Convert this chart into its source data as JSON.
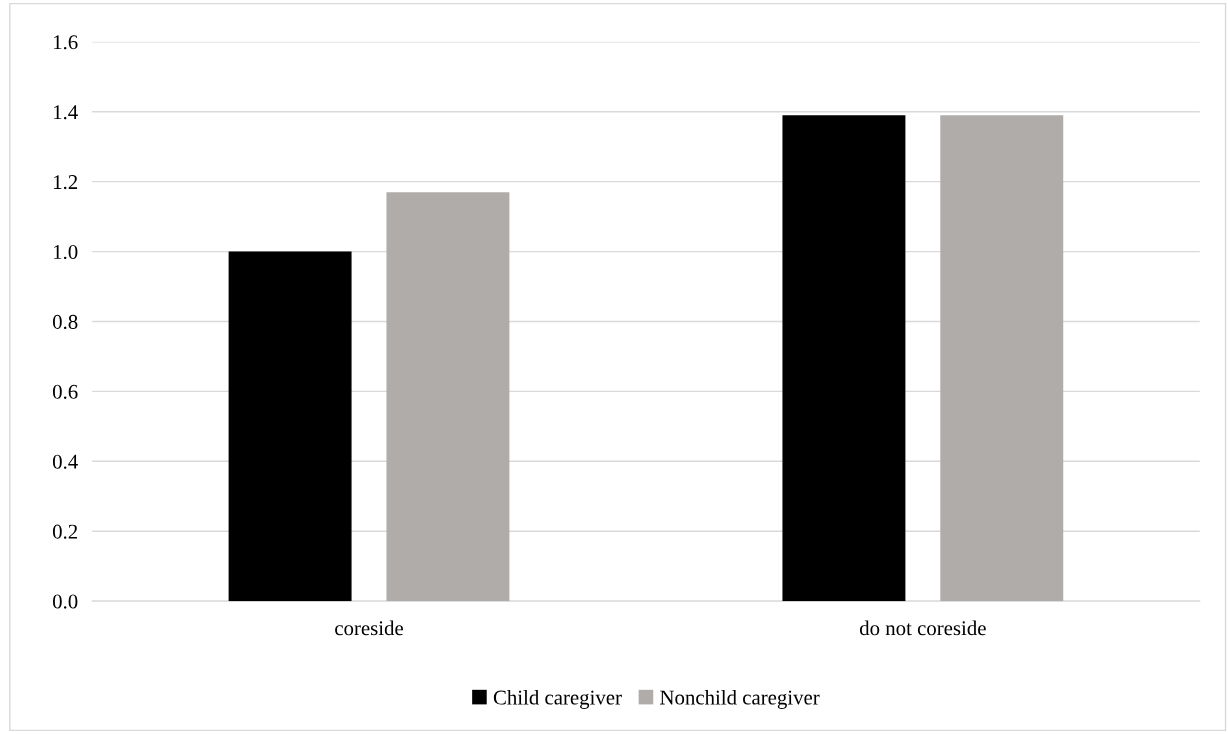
{
  "chart_data": {
    "type": "bar",
    "categories": [
      "coreside",
      "do not coreside"
    ],
    "series": [
      {
        "name": "Child caregiver",
        "color": "#000000",
        "values": [
          1.0,
          1.39
        ]
      },
      {
        "name": "Nonchild caregiver",
        "color": "#afacaa",
        "values": [
          1.17,
          1.39
        ]
      }
    ],
    "ylim": [
      0,
      1.6
    ],
    "yticks": [
      {
        "value": 0,
        "label": "0.0"
      },
      0.2,
      0.4,
      0.6,
      0.8,
      {
        "value": 1,
        "label": "1.0"
      },
      1.2,
      1.4,
      1.6
    ],
    "grid": "y",
    "legend": "bottom"
  }
}
